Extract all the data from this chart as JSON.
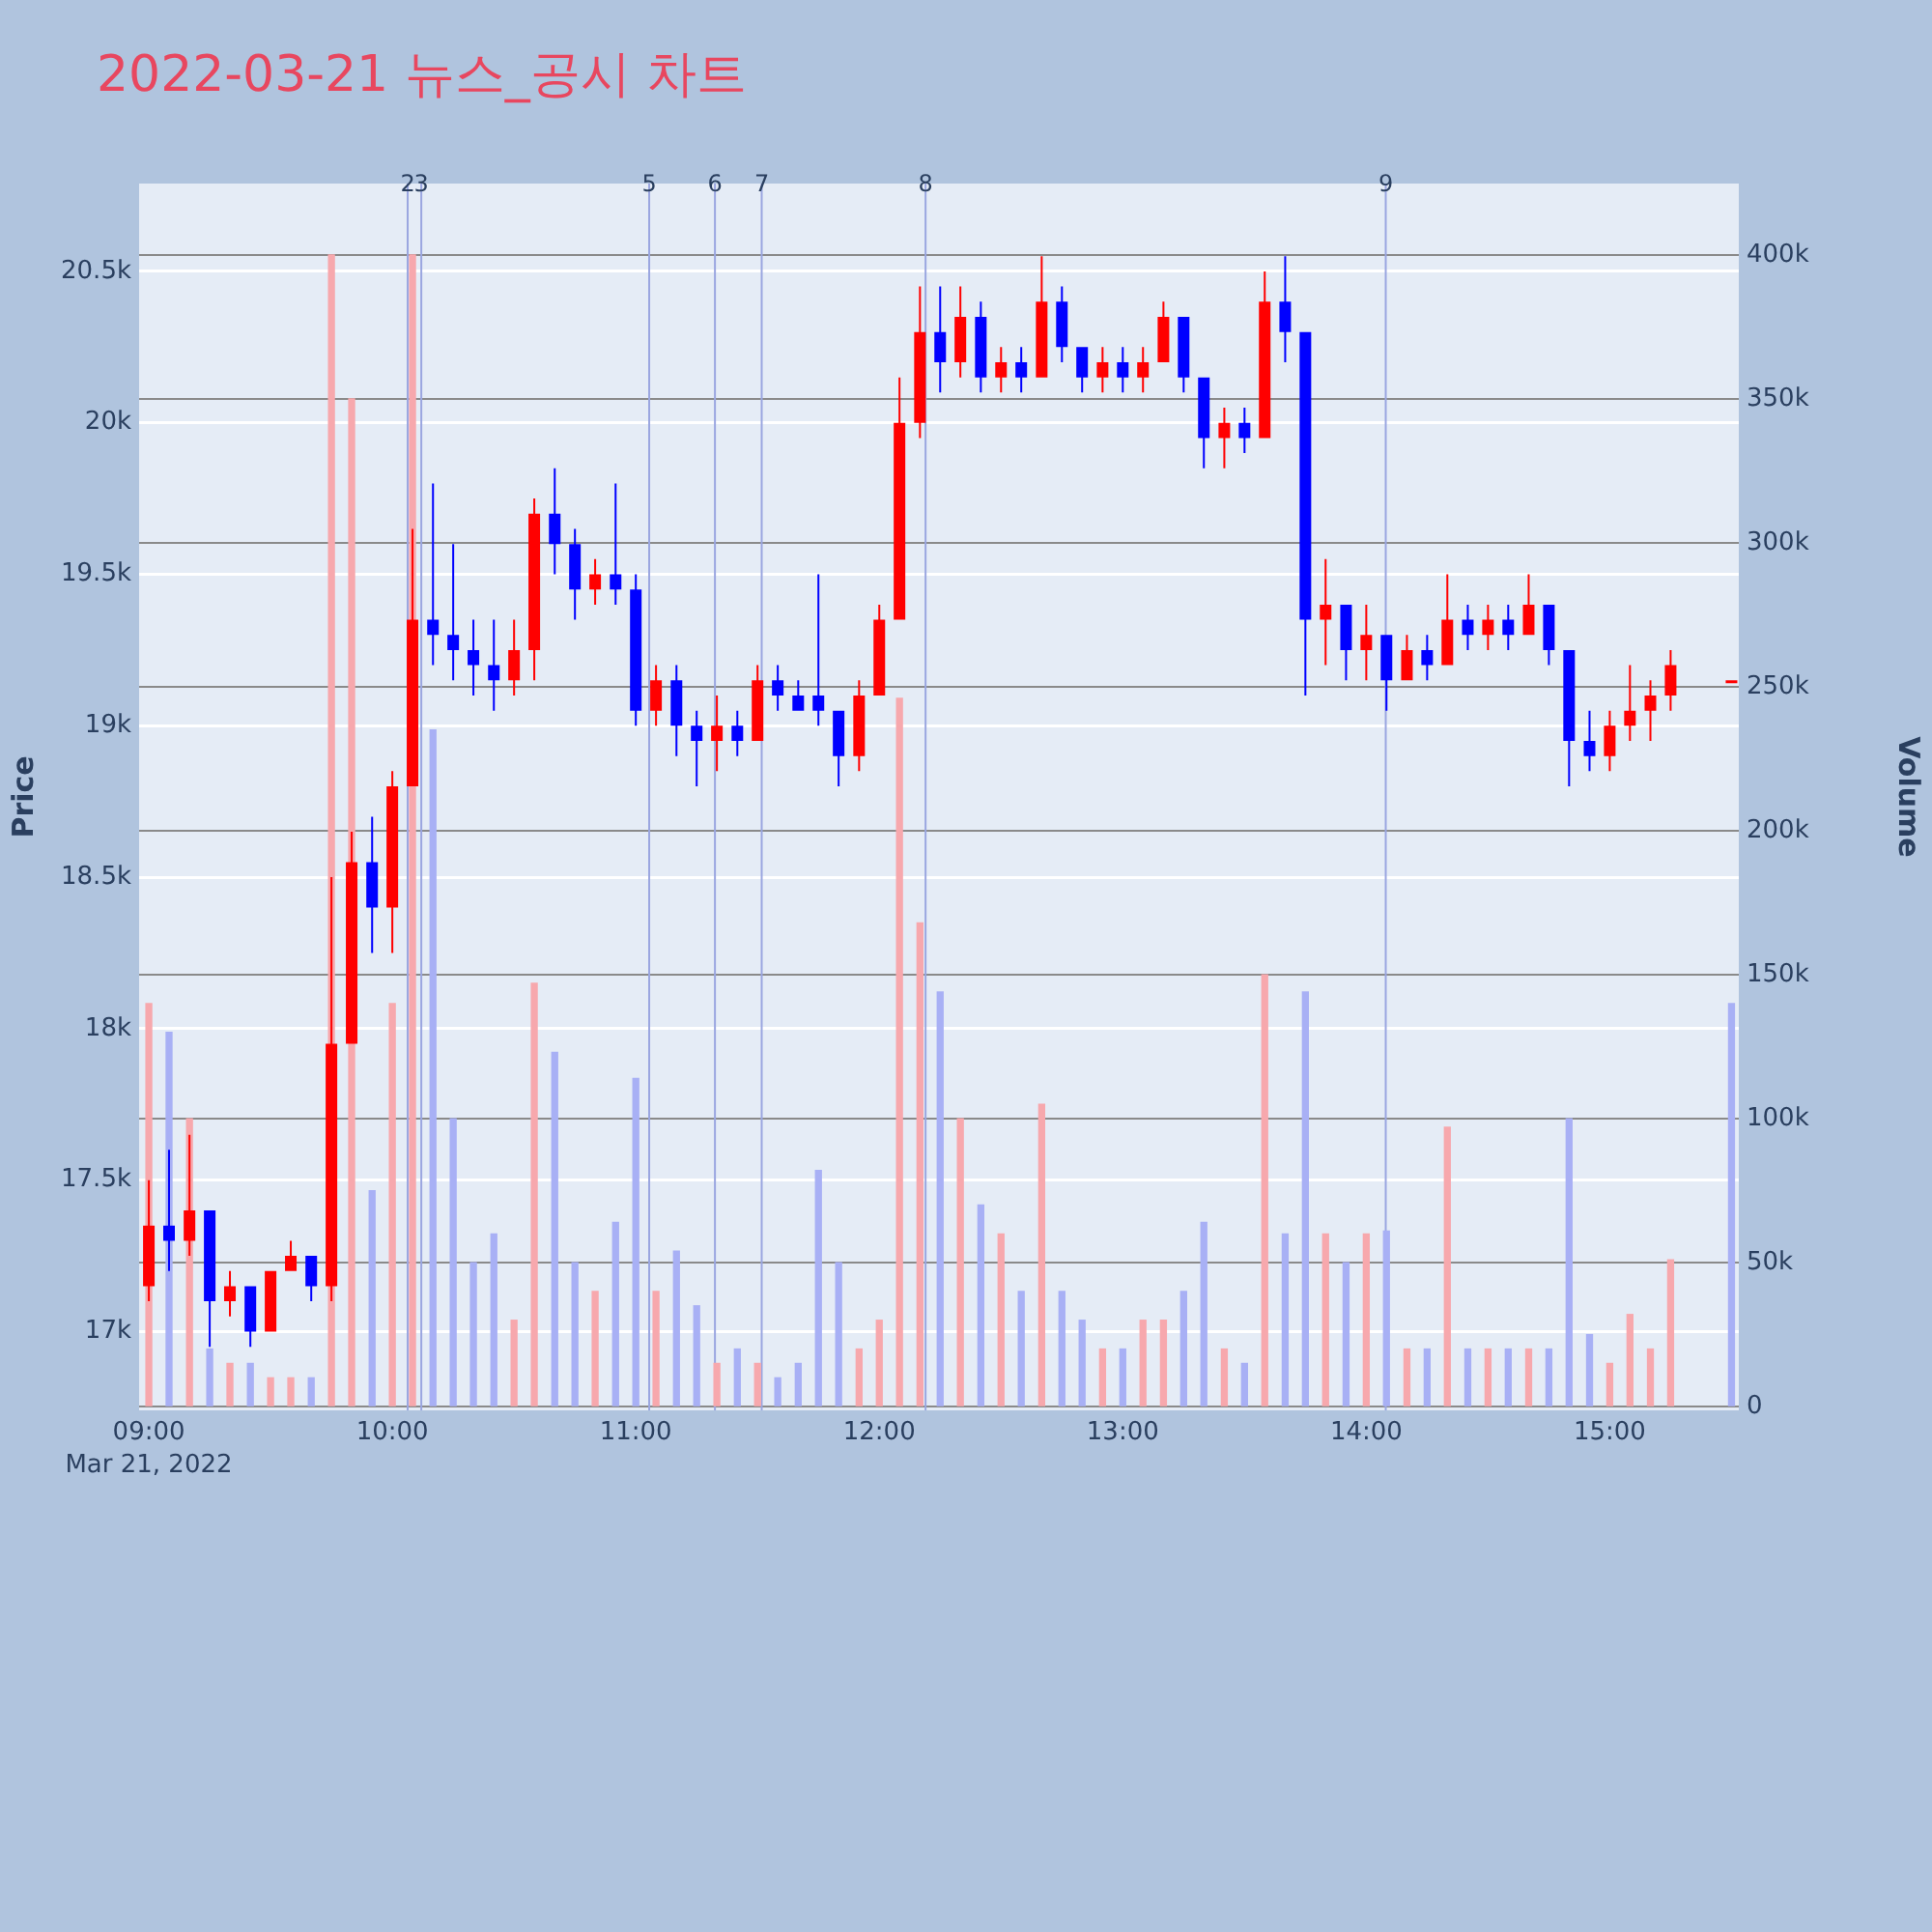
{
  "chart_data": {
    "type": "candlestick",
    "title": "2022-03-21 뉴스_공시 차트",
    "ylabel": "Price",
    "y2label": "Volume",
    "x": [
      9,
      9.083,
      9.167,
      9.25,
      9.333,
      9.417,
      9.5,
      9.583,
      9.667,
      9.75,
      9.833,
      9.917,
      10,
      10.083,
      10.167,
      10.25,
      10.333,
      10.417,
      10.5,
      10.583,
      10.667,
      10.75,
      10.833,
      10.917,
      11,
      11.083,
      11.167,
      11.25,
      11.333,
      11.417,
      11.5,
      11.583,
      11.667,
      11.75,
      11.833,
      11.917,
      12,
      12.083,
      12.167,
      12.25,
      12.333,
      12.417,
      12.5,
      12.583,
      12.667,
      12.75,
      12.833,
      12.917,
      13,
      13.083,
      13.167,
      13.25,
      13.333,
      13.417,
      13.5,
      13.583,
      13.667,
      13.75,
      13.833,
      13.917,
      14,
      14.083,
      14.167,
      14.25,
      14.333,
      14.417,
      14.5,
      14.583,
      14.667,
      14.75,
      14.833,
      14.917,
      15,
      15.083,
      15.167,
      15.25,
      15.5
    ],
    "series": [
      {
        "ohlc": [
          [
            17150,
            17500,
            17100,
            17350
          ],
          [
            17350,
            17600,
            17200,
            17300
          ],
          [
            17300,
            17650,
            17250,
            17400
          ],
          [
            17400,
            17400,
            16950,
            17100
          ],
          [
            17100,
            17200,
            17050,
            17150
          ],
          [
            17150,
            17150,
            16950,
            17000
          ],
          [
            17000,
            17200,
            17000,
            17200
          ],
          [
            17200,
            17300,
            17200,
            17250
          ],
          [
            17250,
            17250,
            17100,
            17150
          ],
          [
            17150,
            18500,
            17100,
            17950
          ],
          [
            17950,
            18650,
            17950,
            18550
          ],
          [
            18550,
            18700,
            18250,
            18400
          ],
          [
            18400,
            18850,
            18250,
            18800
          ],
          [
            18800,
            19650,
            18800,
            19350
          ],
          [
            19350,
            19800,
            19200,
            19300
          ],
          [
            19300,
            19600,
            19150,
            19250
          ],
          [
            19250,
            19350,
            19100,
            19200
          ],
          [
            19200,
            19350,
            19050,
            19150
          ],
          [
            19150,
            19350,
            19100,
            19250
          ],
          [
            19250,
            19750,
            19150,
            19700
          ],
          [
            19700,
            19850,
            19500,
            19600
          ],
          [
            19600,
            19650,
            19350,
            19450
          ],
          [
            19450,
            19550,
            19400,
            19500
          ],
          [
            19500,
            19800,
            19400,
            19450
          ],
          [
            19450,
            19500,
            19000,
            19050
          ],
          [
            19050,
            19200,
            19000,
            19150
          ],
          [
            19150,
            19200,
            18900,
            19000
          ],
          [
            19000,
            19050,
            18800,
            18950
          ],
          [
            18950,
            19100,
            18850,
            19000
          ],
          [
            19000,
            19050,
            18900,
            18950
          ],
          [
            18950,
            19200,
            18950,
            19150
          ],
          [
            19150,
            19200,
            19050,
            19100
          ],
          [
            19100,
            19150,
            19050,
            19050
          ],
          [
            19100,
            19500,
            19000,
            19050
          ],
          [
            19050,
            19050,
            18800,
            18900
          ],
          [
            18900,
            19150,
            18850,
            19100
          ],
          [
            19100,
            19400,
            19100,
            19350
          ],
          [
            19350,
            20150,
            19350,
            20000
          ],
          [
            20000,
            20450,
            19950,
            20300
          ],
          [
            20300,
            20450,
            20100,
            20200
          ],
          [
            20200,
            20450,
            20150,
            20350
          ],
          [
            20350,
            20400,
            20100,
            20150
          ],
          [
            20150,
            20250,
            20100,
            20200
          ],
          [
            20200,
            20250,
            20100,
            20150
          ],
          [
            20150,
            20550,
            20150,
            20400
          ],
          [
            20400,
            20450,
            20200,
            20250
          ],
          [
            20250,
            20250,
            20100,
            20150
          ],
          [
            20150,
            20250,
            20100,
            20200
          ],
          [
            20200,
            20250,
            20100,
            20150
          ],
          [
            20150,
            20250,
            20100,
            20200
          ],
          [
            20200,
            20400,
            20200,
            20350
          ],
          [
            20350,
            20350,
            20100,
            20150
          ],
          [
            20150,
            20150,
            19850,
            19950
          ],
          [
            19950,
            20050,
            19850,
            20000
          ],
          [
            20000,
            20050,
            19900,
            19950
          ],
          [
            19950,
            20500,
            19950,
            20400
          ],
          [
            20400,
            20550,
            20200,
            20300
          ],
          [
            20300,
            20300,
            19100,
            19350
          ],
          [
            19350,
            19550,
            19200,
            19400
          ],
          [
            19400,
            19400,
            19150,
            19250
          ],
          [
            19250,
            19400,
            19150,
            19300
          ],
          [
            19300,
            19300,
            19050,
            19150
          ],
          [
            19150,
            19300,
            19150,
            19250
          ],
          [
            19250,
            19300,
            19150,
            19200
          ],
          [
            19200,
            19500,
            19200,
            19350
          ],
          [
            19350,
            19400,
            19250,
            19300
          ],
          [
            19300,
            19400,
            19250,
            19350
          ],
          [
            19350,
            19400,
            19250,
            19300
          ],
          [
            19300,
            19500,
            19300,
            19400
          ],
          [
            19400,
            19400,
            19200,
            19250
          ],
          [
            19250,
            19250,
            18800,
            18950
          ],
          [
            18950,
            19050,
            18850,
            18900
          ],
          [
            18900,
            19050,
            18850,
            19000
          ],
          [
            19000,
            19200,
            18950,
            19050
          ],
          [
            19050,
            19150,
            18950,
            19100
          ],
          [
            19100,
            19250,
            19050,
            19200
          ],
          [
            19150,
            19150,
            19150,
            19150
          ]
        ],
        "colors": [
          "#ff0000",
          "#0000ff",
          "#ff0000",
          "#0000ff",
          "#ff0000",
          "#0000ff",
          "#ff0000",
          "#ff0000",
          "#0000ff",
          "#ff0000",
          "#ff0000",
          "#0000ff",
          "#ff0000",
          "#ff0000",
          "#0000ff",
          "#0000ff",
          "#0000ff",
          "#0000ff",
          "#ff0000",
          "#ff0000",
          "#0000ff",
          "#0000ff",
          "#ff0000",
          "#0000ff",
          "#0000ff",
          "#ff0000",
          "#0000ff",
          "#0000ff",
          "#ff0000",
          "#0000ff",
          "#ff0000",
          "#0000ff",
          "#0000ff",
          "#0000ff",
          "#0000ff",
          "#ff0000",
          "#ff0000",
          "#ff0000",
          "#ff0000",
          "#0000ff",
          "#ff0000",
          "#0000ff",
          "#ff0000",
          "#0000ff",
          "#ff0000",
          "#0000ff",
          "#0000ff",
          "#ff0000",
          "#0000ff",
          "#ff0000",
          "#ff0000",
          "#0000ff",
          "#0000ff",
          "#ff0000",
          "#0000ff",
          "#ff0000",
          "#0000ff",
          "#0000ff",
          "#ff0000",
          "#0000ff",
          "#ff0000",
          "#0000ff",
          "#ff0000",
          "#0000ff",
          "#ff0000",
          "#0000ff",
          "#ff0000",
          "#0000ff",
          "#ff0000",
          "#0000ff",
          "#0000ff",
          "#0000ff",
          "#ff0000",
          "#ff0000",
          "#ff0000",
          "#ff0000",
          "#ff0000"
        ]
      },
      {
        "type": "bar",
        "axis": "y2",
        "values": [
          140000,
          130000,
          100000,
          20000,
          15000,
          15000,
          10000,
          10000,
          10000,
          400000,
          350000,
          75000,
          140000,
          400000,
          235000,
          100000,
          50000,
          60000,
          30000,
          147000,
          123000,
          50000,
          40000,
          64000,
          114000,
          40000,
          54000,
          35000,
          15000,
          20000,
          15000,
          10000,
          15000,
          82000,
          50000,
          20000,
          30000,
          246000,
          168000,
          144000,
          100000,
          70000,
          60000,
          40000,
          105000,
          40000,
          30000,
          20000,
          20000,
          30000,
          30000,
          40000,
          64000,
          20000,
          15000,
          150000,
          60000,
          144000,
          60000,
          50000,
          60000,
          61000,
          20000,
          20000,
          97000,
          20000,
          20000,
          20000,
          20000,
          20000,
          100000,
          25000,
          15000,
          32000,
          20000,
          51000,
          140000
        ],
        "colors": [
          "#f7a8ad",
          "#a8b0f5",
          "#f7a8ad",
          "#a8b0f5",
          "#f7a8ad",
          "#a8b0f5",
          "#f7a8ad",
          "#f7a8ad",
          "#a8b0f5",
          "#f7a8ad",
          "#f7a8ad",
          "#a8b0f5",
          "#f7a8ad",
          "#f7a8ad",
          "#a8b0f5",
          "#a8b0f5",
          "#a8b0f5",
          "#a8b0f5",
          "#f7a8ad",
          "#f7a8ad",
          "#a8b0f5",
          "#a8b0f5",
          "#f7a8ad",
          "#a8b0f5",
          "#a8b0f5",
          "#f7a8ad",
          "#a8b0f5",
          "#a8b0f5",
          "#f7a8ad",
          "#a8b0f5",
          "#f7a8ad",
          "#a8b0f5",
          "#a8b0f5",
          "#a8b0f5",
          "#a8b0f5",
          "#f7a8ad",
          "#f7a8ad",
          "#f7a8ad",
          "#f7a8ad",
          "#a8b0f5",
          "#f7a8ad",
          "#a8b0f5",
          "#f7a8ad",
          "#a8b0f5",
          "#f7a8ad",
          "#a8b0f5",
          "#a8b0f5",
          "#f7a8ad",
          "#a8b0f5",
          "#f7a8ad",
          "#f7a8ad",
          "#a8b0f5",
          "#a8b0f5",
          "#f7a8ad",
          "#a8b0f5",
          "#f7a8ad",
          "#a8b0f5",
          "#a8b0f5",
          "#f7a8ad",
          "#a8b0f5",
          "#f7a8ad",
          "#a8b0f5",
          "#f7a8ad",
          "#a8b0f5",
          "#f7a8ad",
          "#a8b0f5",
          "#f7a8ad",
          "#a8b0f5",
          "#f7a8ad",
          "#a8b0f5",
          "#a8b0f5",
          "#a8b0f5",
          "#f7a8ad",
          "#f7a8ad",
          "#f7a8ad",
          "#f7a8ad",
          "#a8b0f5"
        ]
      }
    ],
    "xlim": [
      8.96,
      15.53
    ],
    "xticks": [
      {
        "value": 9,
        "label": "09:00"
      },
      {
        "value": 10,
        "label": "10:00"
      },
      {
        "value": 11,
        "label": "11:00"
      },
      {
        "value": 12,
        "label": "12:00"
      },
      {
        "value": 13,
        "label": "13:00"
      },
      {
        "value": 14,
        "label": "14:00"
      },
      {
        "value": 15,
        "label": "15:00"
      }
    ],
    "ylim": [
      16740,
      20790
    ],
    "yticks": [
      {
        "value": 17000,
        "label": "17k"
      },
      {
        "value": 17500,
        "label": "17.5k"
      },
      {
        "value": 18000,
        "label": "18k"
      },
      {
        "value": 18500,
        "label": "18.5k"
      },
      {
        "value": 19000,
        "label": "19k"
      },
      {
        "value": 19500,
        "label": "19.5k"
      },
      {
        "value": 20000,
        "label": "20k"
      },
      {
        "value": 20500,
        "label": "20.5k"
      }
    ],
    "y2lim": [
      -1300,
      424800
    ],
    "y2ticks": [
      0,
      {
        "value": 50000,
        "label": "50k"
      },
      {
        "value": 100000,
        "label": "100k"
      },
      {
        "value": 150000,
        "label": "150k"
      },
      {
        "value": 200000,
        "label": "200k"
      },
      {
        "value": 250000,
        "label": "250k"
      },
      {
        "value": 300000,
        "label": "300k"
      },
      {
        "value": 350000,
        "label": "350k"
      },
      {
        "value": 400000,
        "label": "400k"
      }
    ],
    "annotations": [
      "Mar 21, 2022",
      {
        "text": "2",
        "x": 10.063
      },
      {
        "text": "3",
        "x": 10.119
      },
      {
        "text": "5",
        "x": 11.055
      },
      {
        "text": "6",
        "x": 11.325
      },
      {
        "text": "7",
        "x": 11.517
      },
      {
        "text": "8",
        "x": 12.19
      },
      {
        "text": "9",
        "x": 14.08
      }
    ],
    "ref_lines": [
      {
        "axis": "x",
        "value": 10.063,
        "color": "#9aa6e0"
      },
      {
        "axis": "x",
        "value": 10.119,
        "color": "#9aa6e0"
      },
      {
        "axis": "x",
        "value": 11.055,
        "color": "#9aa6e0"
      },
      {
        "axis": "x",
        "value": 11.325,
        "color": "#9aa6e0"
      },
      {
        "axis": "x",
        "value": 11.517,
        "color": "#9aa6e0"
      },
      {
        "axis": "x",
        "value": 12.19,
        "color": "#9aa6e0"
      },
      {
        "axis": "x",
        "value": 14.08,
        "color": "#9aa6e0"
      }
    ],
    "grid": "y",
    "legend": false
  }
}
